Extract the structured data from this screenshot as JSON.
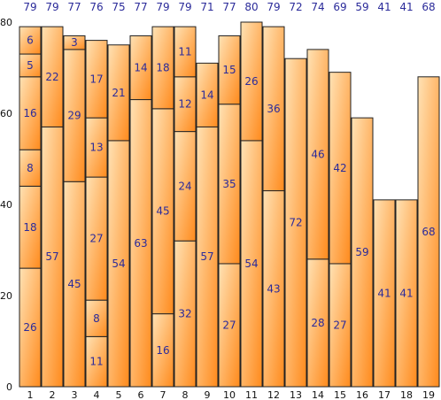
{
  "chart_data": {
    "type": "bar",
    "stacked": true,
    "title": "",
    "xlabel": "",
    "ylabel": "",
    "ylim": [
      0,
      80
    ],
    "yticks": [
      0,
      20,
      40,
      60,
      80
    ],
    "categories": [
      "1",
      "2",
      "3",
      "4",
      "5",
      "6",
      "7",
      "8",
      "9",
      "10",
      "11",
      "12",
      "13",
      "14",
      "15",
      "16",
      "17",
      "18",
      "19"
    ],
    "totals": [
      79,
      79,
      77,
      76,
      75,
      77,
      79,
      79,
      71,
      77,
      80,
      79,
      72,
      74,
      69,
      59,
      41,
      41,
      68
    ],
    "stacks": [
      [
        26,
        18,
        8,
        16,
        5,
        6
      ],
      [
        57,
        22
      ],
      [
        45,
        29,
        3
      ],
      [
        11,
        8,
        27,
        13,
        17
      ],
      [
        54,
        21
      ],
      [
        63,
        14
      ],
      [
        16,
        45,
        18
      ],
      [
        32,
        24,
        12,
        11
      ],
      [
        57,
        14
      ],
      [
        27,
        35,
        15
      ],
      [
        54,
        26
      ],
      [
        43,
        36
      ],
      [
        72
      ],
      [
        28,
        46
      ],
      [
        27,
        42
      ],
      [
        59
      ],
      [
        41
      ],
      [
        41
      ],
      [
        68
      ]
    ],
    "grid": false,
    "legend": "none",
    "colors": {
      "bar_light": "#ffe2b5",
      "bar_dark": "#ff8a1c",
      "bar_border": "#222222",
      "label": "#2b2b9a",
      "axis": "#111111"
    }
  }
}
